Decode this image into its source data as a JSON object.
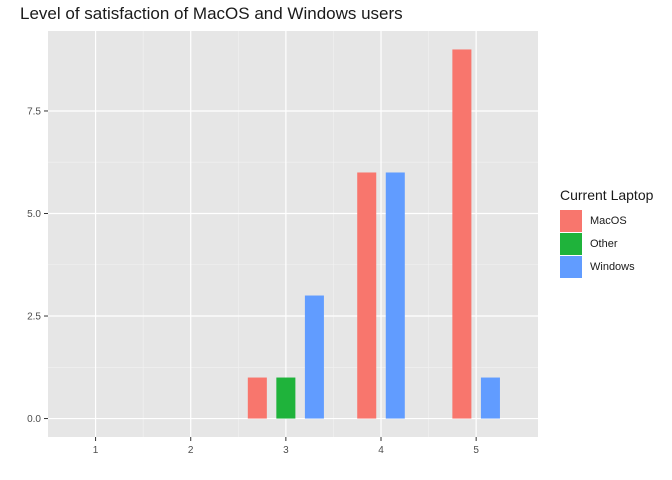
{
  "chart_data": {
    "type": "bar",
    "title": "Level of satisfaction of MacOS and Windows users",
    "xlabel": "",
    "ylabel": "",
    "categories": [
      "1",
      "2",
      "3",
      "4",
      "5"
    ],
    "xlim": [
      0.5,
      5.65
    ],
    "ylim": [
      -0.45,
      9.45
    ],
    "yticks": [
      0.0,
      2.5,
      5.0,
      7.5
    ],
    "ytick_labels": [
      "0.0",
      "2.5",
      "5.0",
      "7.5"
    ],
    "grid": true,
    "legend": {
      "title": "Current Laptop",
      "position": "right",
      "items": [
        "MacOS",
        "Other",
        "Windows"
      ]
    },
    "series": [
      {
        "name": "MacOS",
        "color": "#F8766D",
        "points": [
          {
            "x": 3,
            "y": 1
          },
          {
            "x": 4,
            "y": 6
          },
          {
            "x": 5,
            "y": 9
          }
        ]
      },
      {
        "name": "Other",
        "color": "#1FB33B",
        "points": [
          {
            "x": 3,
            "y": 1
          }
        ]
      },
      {
        "name": "Windows",
        "color": "#619CFF",
        "points": [
          {
            "x": 3,
            "y": 3
          },
          {
            "x": 4,
            "y": 6
          },
          {
            "x": 5,
            "y": 1
          }
        ]
      }
    ],
    "panel_background": "#E6E6E6"
  }
}
